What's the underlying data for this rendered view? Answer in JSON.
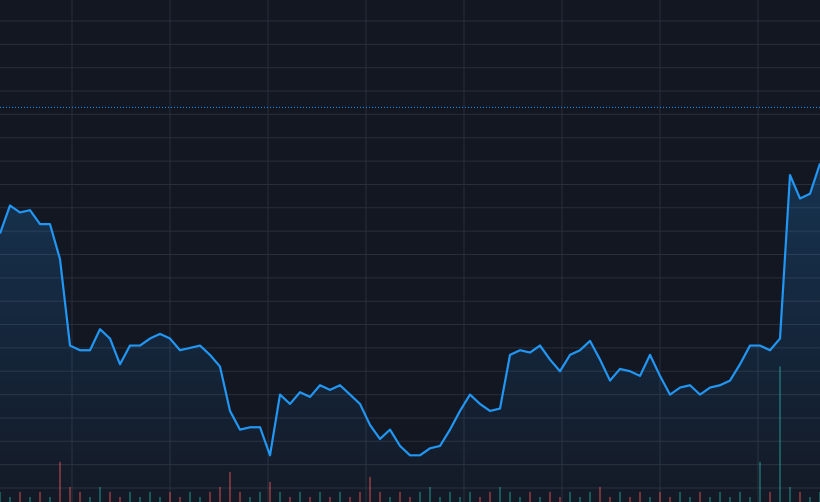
{
  "chart_data": {
    "type": "line",
    "x": [
      0,
      1,
      2,
      3,
      4,
      5,
      6,
      7,
      8,
      9,
      10,
      11,
      12,
      13,
      14,
      15,
      16,
      17,
      18,
      19,
      20,
      21,
      22,
      23,
      24,
      25,
      26,
      27,
      28,
      29,
      30,
      31,
      32,
      33,
      34,
      35,
      36,
      37,
      38,
      39,
      40,
      41,
      42,
      43,
      44,
      45,
      46,
      47,
      48,
      49,
      50,
      51,
      52,
      53,
      54,
      55,
      56,
      57,
      58,
      59,
      60,
      61,
      62,
      63,
      64,
      65,
      66,
      67,
      68,
      69,
      70,
      71,
      72,
      73,
      74,
      75,
      76,
      77,
      78,
      79,
      80,
      81,
      82
    ],
    "series": [
      {
        "color": "#2196f3",
        "values": [
          10.9,
          12.1,
          11.8,
          11.9,
          11.3,
          11.3,
          9.8,
          6.1,
          5.9,
          5.9,
          6.8,
          6.4,
          5.3,
          6.1,
          6.1,
          6.4,
          6.6,
          6.4,
          5.9,
          6.0,
          6.1,
          5.7,
          5.2,
          3.3,
          2.5,
          2.6,
          2.6,
          1.4,
          4.0,
          3.6,
          4.1,
          3.9,
          4.4,
          4.2,
          4.4,
          4.0,
          3.6,
          2.7,
          2.1,
          2.5,
          1.8,
          1.4,
          1.4,
          1.7,
          1.8,
          2.5,
          3.3,
          4.0,
          3.6,
          3.3,
          3.4,
          5.7,
          5.9,
          5.8,
          6.1,
          5.5,
          5.0,
          5.7,
          5.9,
          6.3,
          5.5,
          4.6,
          5.1,
          5.0,
          4.8,
          5.7,
          4.8,
          4.0,
          4.3,
          4.4,
          4.0,
          4.3,
          4.4,
          4.6,
          5.3,
          6.1,
          6.1,
          5.9,
          6.4,
          13.4,
          12.4,
          12.6,
          13.9
        ]
      }
    ],
    "volume": [
      2,
      1,
      2,
      1,
      2,
      1,
      8,
      3,
      2,
      1,
      3,
      2,
      1,
      2,
      1,
      2,
      1,
      2,
      1,
      2,
      1,
      2,
      3,
      6,
      2,
      1,
      2,
      4,
      2,
      1,
      2,
      1,
      2,
      1,
      2,
      1,
      2,
      5,
      2,
      1,
      2,
      1,
      2,
      3,
      1,
      2,
      1,
      2,
      1,
      2,
      3,
      2,
      1,
      2,
      1,
      2,
      1,
      2,
      1,
      2,
      3,
      1,
      2,
      1,
      2,
      1,
      2,
      1,
      2,
      1,
      2,
      1,
      2,
      1,
      2,
      1,
      8,
      2,
      27,
      3,
      2,
      1,
      2
    ],
    "up_color": "#26a69a",
    "down_color": "#ef5350",
    "price_line": 16.3,
    "xlim": [
      0,
      82
    ],
    "ylim": [
      -0.6,
      20.9
    ],
    "y2lim": [
      0,
      100
    ],
    "xticks": [
      7.2,
      17,
      26.8,
      36.6,
      46.4,
      56.2,
      66,
      75.8
    ],
    "yticks": [
      0,
      1,
      2,
      3,
      4,
      5,
      6,
      7,
      8,
      9,
      10,
      11,
      12,
      13,
      14,
      15,
      16,
      17,
      18,
      19,
      20
    ],
    "grid": true
  }
}
